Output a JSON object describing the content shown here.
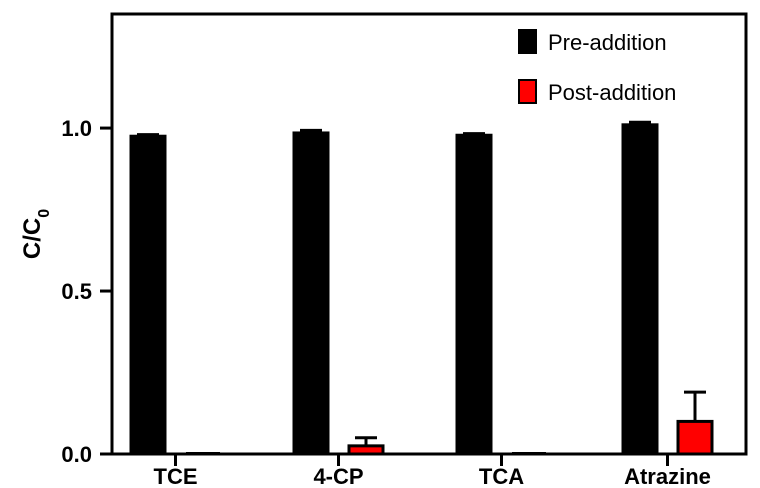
{
  "chart_data": {
    "type": "bar",
    "categories": [
      "TCE",
      "4-CP",
      "TCA",
      "Atrazine"
    ],
    "series": [
      {
        "name": "Pre-addition",
        "color": "#000000",
        "values": [
          0.975,
          0.985,
          0.978,
          1.01
        ],
        "errors": [
          0.005,
          0.008,
          0.005,
          0.008
        ]
      },
      {
        "name": "Post-addition",
        "color": "#ff0000",
        "values": [
          0.0,
          0.025,
          0.0,
          0.1
        ],
        "errors": [
          0.0,
          0.025,
          0.0,
          0.09
        ]
      }
    ],
    "ylim": [
      0,
      1.35
    ],
    "yticks": [
      0.0,
      0.5,
      1.0
    ],
    "ytick_labels": [
      "0.0",
      "0.5",
      "1.0"
    ],
    "ylabel": {
      "main": "C/C",
      "subscript": "0"
    },
    "xlabel": "",
    "title": "",
    "grid": false,
    "legend_position": "top-right"
  }
}
